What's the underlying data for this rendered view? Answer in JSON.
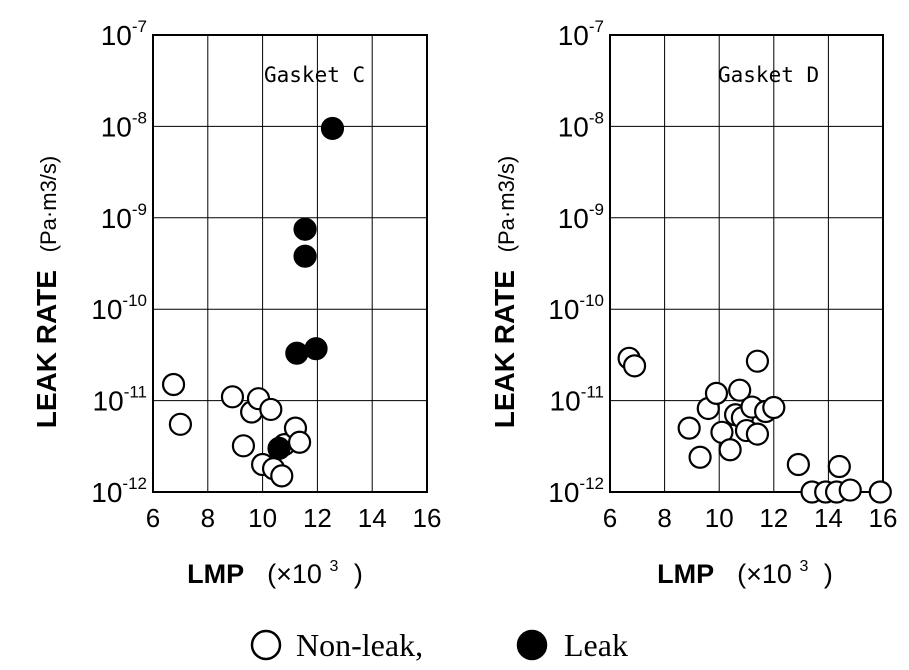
{
  "chart_data": [
    {
      "type": "scatter",
      "annotation": "Gasket C",
      "xlabel": "LMP",
      "xlabel_unit": "(×10",
      "xlabel_unit_exp": "3",
      "xlabel_unit_close": ")",
      "ylabel": "LEAK RATE",
      "ylabel_unit": "(Pa·m3/s)",
      "xlim": [
        6,
        16
      ],
      "ylim": [
        1e-12,
        1e-07
      ],
      "y_scale": "log",
      "x_ticks": [
        "6",
        "8",
        "10",
        "12",
        "14",
        "16"
      ],
      "y_ticks": [
        {
          "base": "10",
          "exp": "-12"
        },
        {
          "base": "10",
          "exp": "-11"
        },
        {
          "base": "10",
          "exp": "-10"
        },
        {
          "base": "10",
          "exp": "-9"
        },
        {
          "base": "10",
          "exp": "-8"
        },
        {
          "base": "10",
          "exp": "-7"
        }
      ],
      "grid": true,
      "series": [
        {
          "name": "Non-leak",
          "marker": "open-circle",
          "points": [
            {
              "x": 6.75,
              "y": 1.5e-11
            },
            {
              "x": 7.0,
              "y": 5.5e-12
            },
            {
              "x": 8.9,
              "y": 1.1e-11
            },
            {
              "x": 9.3,
              "y": 3.2e-12
            },
            {
              "x": 9.6,
              "y": 7.5e-12
            },
            {
              "x": 9.85,
              "y": 1.05e-11
            },
            {
              "x": 10.0,
              "y": 2e-12
            },
            {
              "x": 10.3,
              "y": 8e-12
            },
            {
              "x": 10.4,
              "y": 1.8e-12
            },
            {
              "x": 10.7,
              "y": 1.5e-12
            },
            {
              "x": 10.8,
              "y": 3.3e-12
            },
            {
              "x": 11.2,
              "y": 5e-12
            },
            {
              "x": 11.35,
              "y": 3.5e-12
            }
          ]
        },
        {
          "name": "Leak",
          "marker": "filled-circle",
          "points": [
            {
              "x": 10.6,
              "y": 3e-12
            },
            {
              "x": 11.25,
              "y": 3.3e-11
            },
            {
              "x": 11.55,
              "y": 7.5e-10
            },
            {
              "x": 11.55,
              "y": 3.8e-10
            },
            {
              "x": 11.95,
              "y": 3.7e-11
            },
            {
              "x": 12.55,
              "y": 9.5e-09
            }
          ]
        }
      ]
    },
    {
      "type": "scatter",
      "annotation": "Gasket D",
      "xlabel": "LMP",
      "xlabel_unit": "(×10",
      "xlabel_unit_exp": "3",
      "xlabel_unit_close": ")",
      "ylabel": "LEAK RATE",
      "ylabel_unit": "(Pa·m3/s)",
      "xlim": [
        6,
        16
      ],
      "ylim": [
        1e-12,
        1e-07
      ],
      "y_scale": "log",
      "x_ticks": [
        "6",
        "8",
        "10",
        "12",
        "14",
        "16"
      ],
      "y_ticks": [
        {
          "base": "10",
          "exp": "-12"
        },
        {
          "base": "10",
          "exp": "-11"
        },
        {
          "base": "10",
          "exp": "-10"
        },
        {
          "base": "10",
          "exp": "-9"
        },
        {
          "base": "10",
          "exp": "-8"
        },
        {
          "base": "10",
          "exp": "-7"
        }
      ],
      "grid": true,
      "series": [
        {
          "name": "Non-leak",
          "marker": "open-circle",
          "points": [
            {
              "x": 6.7,
              "y": 2.9e-11
            },
            {
              "x": 6.9,
              "y": 2.4e-11
            },
            {
              "x": 8.9,
              "y": 5e-12
            },
            {
              "x": 9.3,
              "y": 2.4e-12
            },
            {
              "x": 9.6,
              "y": 8.2e-12
            },
            {
              "x": 9.9,
              "y": 1.2e-11
            },
            {
              "x": 10.1,
              "y": 4.5e-12
            },
            {
              "x": 10.4,
              "y": 2.9e-12
            },
            {
              "x": 10.6,
              "y": 7e-12
            },
            {
              "x": 10.75,
              "y": 1.3e-11
            },
            {
              "x": 10.85,
              "y": 6.5e-12
            },
            {
              "x": 11.0,
              "y": 4.7e-12
            },
            {
              "x": 11.2,
              "y": 8.5e-12
            },
            {
              "x": 11.4,
              "y": 4.3e-12
            },
            {
              "x": 11.4,
              "y": 2.7e-11
            },
            {
              "x": 11.7,
              "y": 7.6e-12
            },
            {
              "x": 12.0,
              "y": 8.4e-12
            },
            {
              "x": 12.9,
              "y": 2e-12
            },
            {
              "x": 13.4,
              "y": 1e-12
            },
            {
              "x": 13.9,
              "y": 1e-12
            },
            {
              "x": 14.3,
              "y": 1e-12
            },
            {
              "x": 14.4,
              "y": 1.9e-12
            },
            {
              "x": 14.8,
              "y": 1.05e-12
            },
            {
              "x": 15.9,
              "y": 1e-12
            }
          ]
        }
      ]
    }
  ],
  "legend": {
    "entries": [
      {
        "marker": "open-circle",
        "label": "Non-leak,"
      },
      {
        "marker": "filled-circle",
        "label": "Leak"
      }
    ]
  }
}
